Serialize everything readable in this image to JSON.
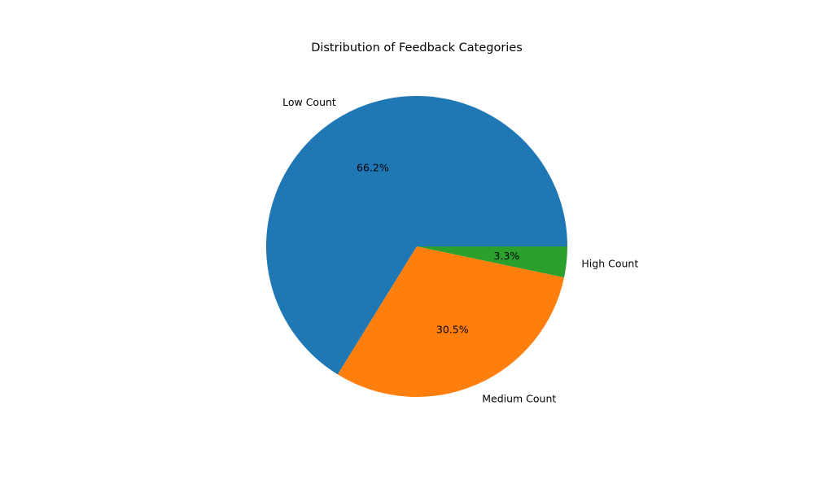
{
  "chart_data": {
    "type": "pie",
    "title": "Distribution of Feedback Categories",
    "categories": [
      "Low Count",
      "Medium Count",
      "High Count"
    ],
    "values": [
      66.2,
      30.5,
      3.3
    ],
    "value_labels": [
      "66.2%",
      "30.5%",
      "3.3%"
    ],
    "colors": [
      "#1f77b4",
      "#ff7f0e",
      "#2ca02c"
    ],
    "start_angle_deg": 0,
    "direction": "counterclockwise"
  }
}
